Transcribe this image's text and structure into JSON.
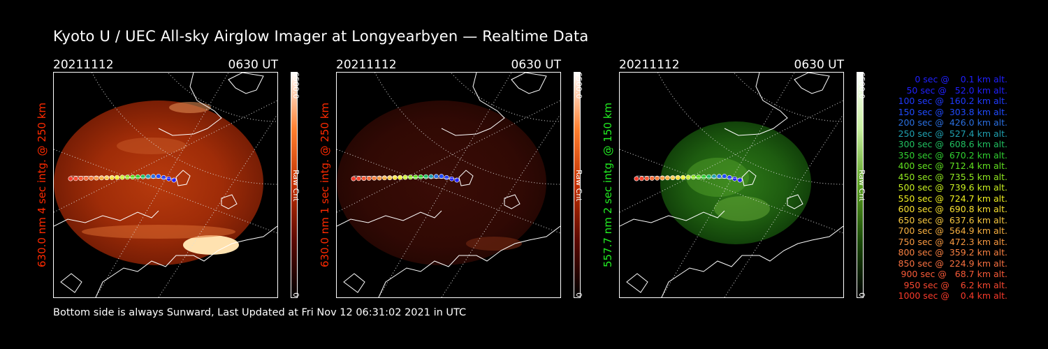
{
  "title": "Kyoto U / UEC All-sky Airglow Imager at Longyearbyen — Realtime Data",
  "footer": "Bottom side is always Sunward, Last Updated at Fri Nov 12 06:31:02 2021 in UTC",
  "panels": [
    {
      "date": "20211112",
      "time": "0630 UT",
      "ylabel": "630.0 nm 4 sec intg. @ 250 km",
      "ylabel_color": "#ff2a00",
      "cbar_max": "6500.0",
      "cbar_min": "0",
      "cbar_unit": "Raw Cnt",
      "colormap": "red",
      "brightness": "high"
    },
    {
      "date": "20211112",
      "time": "0630 UT",
      "ylabel": "630.0 nm 1 sec intg. @ 250 km",
      "ylabel_color": "#ff2a00",
      "cbar_max": "6500.0",
      "cbar_min": "0",
      "cbar_unit": "Raw Cnt",
      "colormap": "red",
      "brightness": "low"
    },
    {
      "date": "20211112",
      "time": "0630 UT",
      "ylabel": "557.7 nm 2 sec intg. @ 150 km",
      "ylabel_color": "#22ee22",
      "cbar_max": "6500.0",
      "cbar_min": "0",
      "cbar_unit": "Raw Cnt",
      "colormap": "green",
      "brightness": "medium"
    }
  ],
  "legend": [
    {
      "text": "   0 sec @    0.1 km alt.",
      "color": "#2020ff"
    },
    {
      "text": "  50 sec @   52.0 km alt.",
      "color": "#2020ff"
    },
    {
      "text": " 100 sec @  160.2 km alt.",
      "color": "#1f3aff"
    },
    {
      "text": " 150 sec @  303.8 km alt.",
      "color": "#1f4bff"
    },
    {
      "text": " 200 sec @  426.0 km alt.",
      "color": "#2a6fe0"
    },
    {
      "text": " 250 sec @  527.4 km alt.",
      "color": "#1fa0b0"
    },
    {
      "text": " 300 sec @  608.6 km alt.",
      "color": "#20c060"
    },
    {
      "text": " 350 sec @  670.2 km alt.",
      "color": "#30d030"
    },
    {
      "text": " 400 sec @  712.4 km alt.",
      "color": "#60e020"
    },
    {
      "text": " 450 sec @  735.5 km alt.",
      "color": "#90e820"
    },
    {
      "text": " 500 sec @  739.6 km alt.",
      "color": "#c8f020"
    },
    {
      "text": " 550 sec @  724.7 km alt.",
      "color": "#f0f020"
    },
    {
      "text": " 600 sec @  690.8 km alt.",
      "color": "#f8e030"
    },
    {
      "text": " 650 sec @  637.6 km alt.",
      "color": "#f8c840"
    },
    {
      "text": " 700 sec @  564.9 km alt.",
      "color": "#f8b040"
    },
    {
      "text": " 750 sec @  472.3 km alt.",
      "color": "#f89840"
    },
    {
      "text": " 800 sec @  359.2 km alt.",
      "color": "#f88040"
    },
    {
      "text": " 850 sec @  224.9 km alt.",
      "color": "#f87040"
    },
    {
      "text": " 900 sec @   68.7 km alt.",
      "color": "#f85a38"
    },
    {
      "text": " 950 sec @    6.2 km alt.",
      "color": "#f84830"
    },
    {
      "text": "1000 sec @    0.4 km alt.",
      "color": "#f83a2a"
    }
  ]
}
